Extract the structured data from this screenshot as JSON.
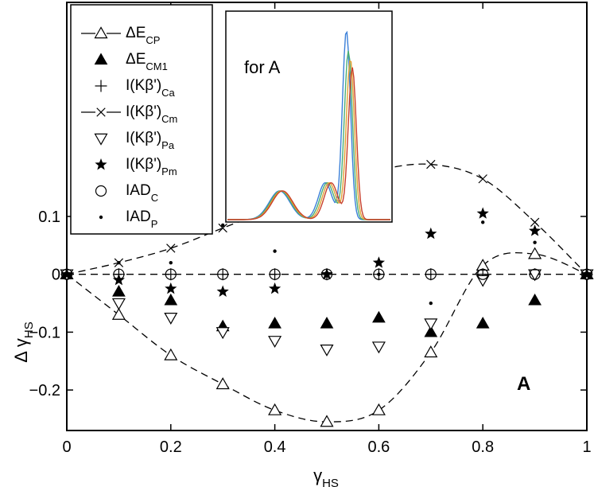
{
  "chart_data": {
    "type": "scatter",
    "title": "",
    "xlabel": "γ",
    "xlabel_sub": "HS",
    "ylabel": "Δ γ",
    "ylabel_sub": "HS",
    "xlim": [
      0,
      1
    ],
    "ylim": [
      -0.27,
      0.47
    ],
    "x_ticks": [
      0,
      0.2,
      0.4,
      0.6,
      0.8,
      1
    ],
    "x_tick_labels": [
      "0",
      "0.2",
      "0.4",
      "0.6",
      "0.8",
      "1"
    ],
    "y_ticks": [
      -0.2,
      -0.1,
      0,
      0.1
    ],
    "y_tick_labels": [
      "−0.2",
      "−0.1",
      "0",
      "0.1"
    ],
    "grid": false,
    "legend_position": "top-left",
    "annotation": "A",
    "series": [
      {
        "name": "ΔE",
        "name_sub": "CP",
        "marker": "triangle-open",
        "line": "dashed",
        "x": [
          0,
          0.1,
          0.2,
          0.3,
          0.4,
          0.5,
          0.6,
          0.7,
          0.8,
          0.9,
          1
        ],
        "y": [
          0,
          -0.07,
          -0.14,
          -0.19,
          -0.235,
          -0.255,
          -0.235,
          -0.135,
          0.015,
          0.035,
          0
        ]
      },
      {
        "name": "ΔE",
        "name_sub": "CM1",
        "marker": "triangle-filled",
        "line": "none",
        "x": [
          0,
          0.1,
          0.2,
          0.3,
          0.4,
          0.5,
          0.6,
          0.7,
          0.8,
          0.9,
          1
        ],
        "y": [
          0,
          -0.03,
          -0.045,
          -0.09,
          -0.085,
          -0.085,
          -0.075,
          -0.1,
          -0.085,
          -0.045,
          0
        ]
      },
      {
        "name": "I(Kβ')",
        "name_sub": "Ca",
        "marker": "plus",
        "line": "none",
        "x": [
          0,
          0.1,
          0.2,
          0.3,
          0.4,
          0.5,
          0.6,
          0.7,
          0.8,
          0.9,
          1
        ],
        "y": [
          0,
          0,
          0,
          0,
          0,
          0,
          0,
          0,
          0,
          0,
          0
        ]
      },
      {
        "name": "I(Kβ')",
        "name_sub": "Cm",
        "marker": "x",
        "line": "dashed",
        "x": [
          0,
          0.1,
          0.2,
          0.3,
          0.4,
          0.5,
          0.6,
          0.7,
          0.8,
          0.9,
          1
        ],
        "y": [
          0,
          0.02,
          0.045,
          0.08,
          0.115,
          0.15,
          0.18,
          0.19,
          0.165,
          0.09,
          0
        ]
      },
      {
        "name": "I(Kβ')",
        "name_sub": "Pa",
        "marker": "triangle-down-open",
        "line": "none",
        "x": [
          0,
          0.1,
          0.2,
          0.3,
          0.4,
          0.5,
          0.6,
          0.7,
          0.8,
          0.9,
          1
        ],
        "y": [
          0,
          -0.05,
          -0.075,
          -0.1,
          -0.115,
          -0.13,
          -0.125,
          -0.085,
          -0.01,
          0,
          0
        ]
      },
      {
        "name": "I(Kβ')",
        "name_sub": "Pm",
        "marker": "star",
        "line": "none",
        "x": [
          0,
          0.1,
          0.2,
          0.3,
          0.4,
          0.5,
          0.6,
          0.7,
          0.8,
          0.9,
          1
        ],
        "y": [
          0,
          -0.01,
          -0.025,
          -0.03,
          -0.025,
          0,
          0.02,
          0.07,
          0.105,
          0.075,
          0
        ]
      },
      {
        "name": "IAD",
        "name_sub": "C",
        "marker": "circle-open",
        "line": "none",
        "x": [
          0,
          0.1,
          0.2,
          0.3,
          0.4,
          0.5,
          0.6,
          0.7,
          0.8,
          0.9,
          1
        ],
        "y": [
          0,
          0,
          0,
          0,
          0,
          0,
          0,
          0,
          0,
          0,
          0
        ]
      },
      {
        "name": "IAD",
        "name_sub": "P",
        "marker": "dot",
        "line": "none",
        "x": [
          0,
          0.1,
          0.2,
          0.3,
          0.4,
          0.5,
          0.6,
          0.7,
          0.8,
          0.9,
          1
        ],
        "y": [
          0,
          0.02,
          0.02,
          0.085,
          0.04,
          0,
          0,
          -0.05,
          0.09,
          0.055,
          0
        ]
      }
    ],
    "reference_line": {
      "y": 0,
      "style": "dashed"
    },
    "inset": {
      "label": "for A",
      "curves": [
        {
          "color": "#3a7fd8",
          "peak": 0.92
        },
        {
          "color": "#4aae76",
          "peak": 0.82
        },
        {
          "color": "#e0a234",
          "peak": 0.78
        },
        {
          "color": "#c8402c",
          "peak": 0.74
        }
      ]
    }
  }
}
